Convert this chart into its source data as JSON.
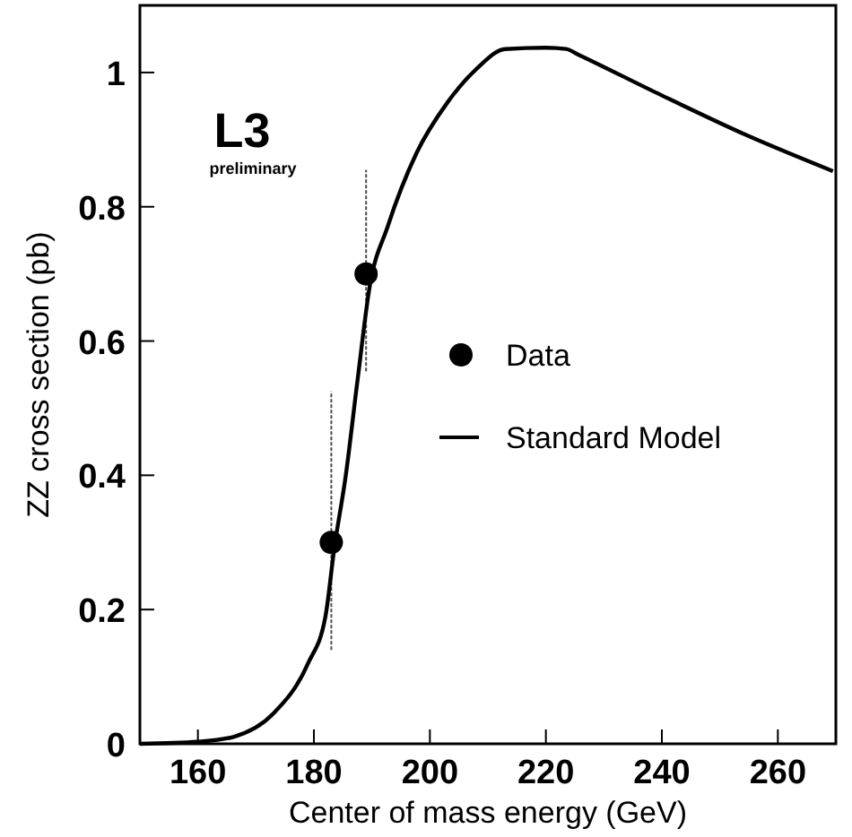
{
  "chart_data": {
    "type": "line",
    "xlabel": "Center of mass energy (GeV)",
    "ylabel": "ZZ cross section (pb)",
    "xlim": [
      150,
      270
    ],
    "ylim": [
      0,
      1.1
    ],
    "xticks": [
      160,
      180,
      200,
      220,
      240,
      260
    ],
    "yticks": [
      0,
      0.2,
      0.4,
      0.6,
      0.8,
      1
    ],
    "grid": false,
    "legend": "right",
    "annotations": [
      "L3",
      "preliminary"
    ],
    "series": [
      {
        "name": "Data",
        "type": "scatter",
        "color": "#000000",
        "marker": "circle",
        "x": [
          183,
          189
        ],
        "values": [
          0.3,
          0.7
        ],
        "errors": [
          [
            0.14,
            0.525
          ],
          [
            0.555,
            0.855
          ]
        ]
      },
      {
        "name": "Standard Model",
        "color": "#000000",
        "line_style": "solid",
        "x": [
          150,
          160,
          166,
          173,
          179,
          182,
          183.5,
          185.5,
          187.5,
          189.6,
          192.7,
          197.7,
          203,
          208,
          213,
          220,
          223.5,
          225.5,
          239,
          254.5,
          269.5
        ],
        "values": [
          0,
          0.003,
          0.01,
          0.045,
          0.12,
          0.19,
          0.29,
          0.4,
          0.54,
          0.68,
          0.77,
          0.88,
          0.955,
          1.005,
          1.035,
          1.037,
          1.035,
          1.027,
          0.97,
          0.907,
          0.853
        ]
      }
    ]
  }
}
